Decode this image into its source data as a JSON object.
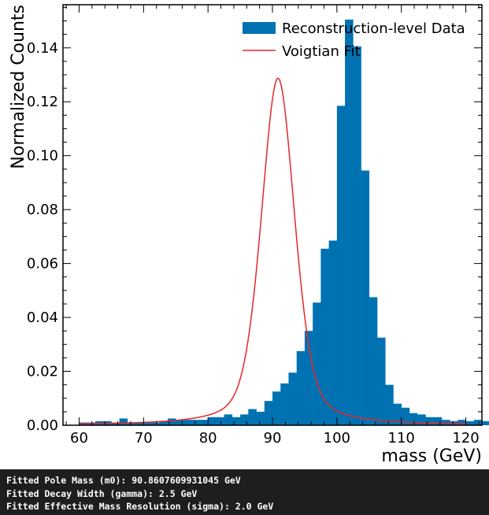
{
  "chart_data": {
    "type": "bar",
    "subtype": "histogram-with-fit",
    "xlabel": "mass (GeV)",
    "ylabel": "Normalized Counts",
    "xlim": [
      57.5,
      122.5
    ],
    "ylim": [
      0,
      0.156
    ],
    "x_ticks": [
      60,
      70,
      80,
      90,
      100,
      110,
      120
    ],
    "y_ticks": [
      0.0,
      0.02,
      0.04,
      0.06,
      0.08,
      0.1,
      0.12,
      0.14
    ],
    "x_tick_labels": [
      "60",
      "70",
      "80",
      "90",
      "100",
      "110",
      "120"
    ],
    "y_tick_labels": [
      "0.00",
      "0.02",
      "0.04",
      "0.06",
      "0.08",
      "0.10",
      "0.12",
      "0.14"
    ],
    "minor_x_step": 2,
    "minor_y_step": 0.005,
    "bin_width": 1.25,
    "bin_edges_start": 60,
    "series": [
      {
        "name": "Reconstruction-level Data",
        "kind": "histogram",
        "color": "#0072B2",
        "values": [
          0.001,
          0.001,
          0.0015,
          0.0015,
          0.001,
          0.0025,
          0.001,
          0.001,
          0.001,
          0.001,
          0.0015,
          0.0025,
          0.002,
          0.002,
          0.002,
          0.002,
          0.003,
          0.003,
          0.004,
          0.003,
          0.004,
          0.006,
          0.005,
          0.009,
          0.0125,
          0.0155,
          0.0195,
          0.0275,
          0.035,
          0.0455,
          0.0655,
          0.0685,
          0.1185,
          0.1505,
          0.1405,
          0.0945,
          0.0475,
          0.0325,
          0.015,
          0.008,
          0.0065,
          0.0045,
          0.004,
          0.003,
          0.003,
          0.002,
          0.0015,
          0.002,
          0.0015,
          0.002,
          0.0015,
          0.001,
          0.001,
          0.001,
          0.001,
          0.0005,
          0.0005,
          0.0005,
          0.0005,
          0.0005
        ]
      },
      {
        "name": "Voigtian Fit",
        "kind": "line",
        "color": "#e8262a",
        "function": "voigtian",
        "m0": 90.8607609931045,
        "gamma": 2.5,
        "sigma": 2.0,
        "x_range": [
          60,
          120
        ]
      }
    ],
    "legend_position": "top-right",
    "grid": false
  },
  "console": {
    "line1": "Fitted Pole Mass (m0): 90.8607609931045 GeV",
    "line2": "Fitted Decay Width (gamma): 2.5 GeV",
    "line3": "Fitted Effective Mass Resolution (sigma): 2.0 GeV"
  }
}
